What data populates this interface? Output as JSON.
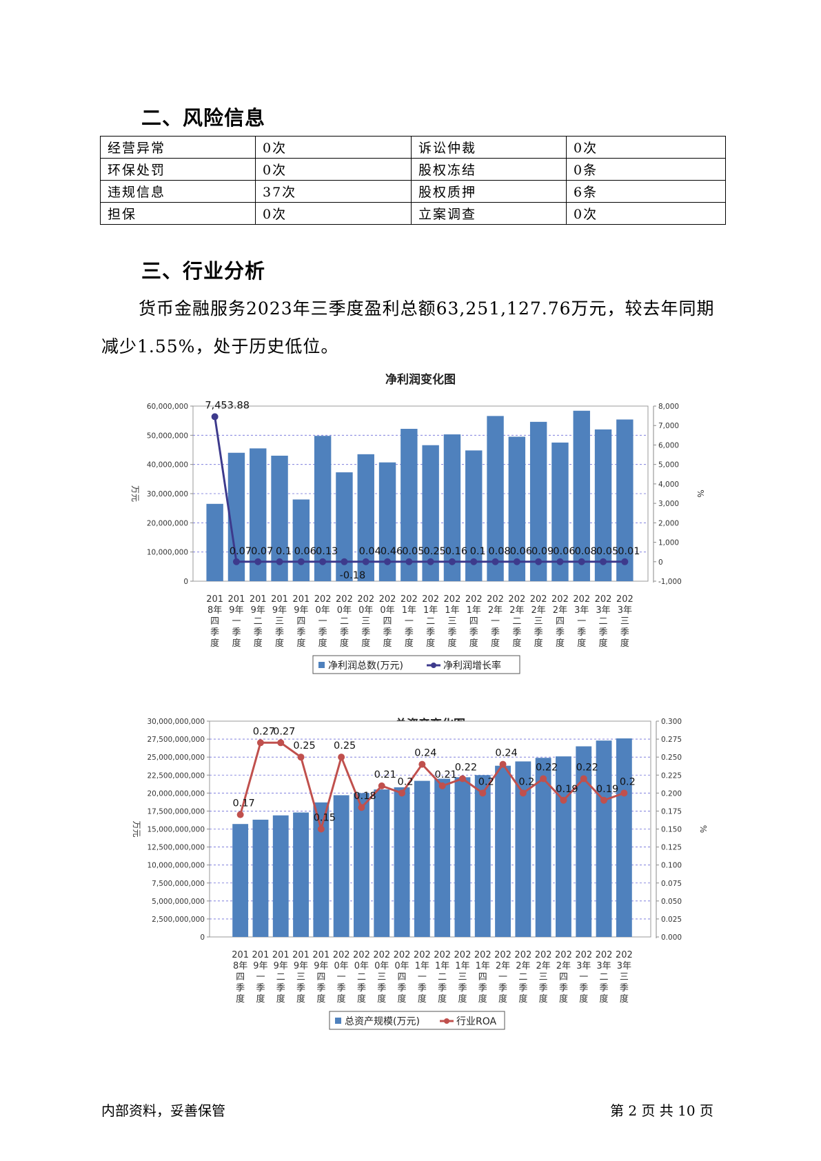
{
  "sections": {
    "risk_title": "二、风险信息",
    "industry_title": "三、行业分析"
  },
  "risk_table": {
    "rows": [
      [
        "经营异常",
        "0次",
        "诉讼仲裁",
        "0次"
      ],
      [
        "环保处罚",
        "0次",
        "股权冻结",
        "0条"
      ],
      [
        "违规信息",
        "37次",
        "股权质押",
        "6条"
      ],
      [
        "担保",
        "0次",
        "立案调查",
        "0次"
      ]
    ]
  },
  "paragraph": "货币金融服务2023年三季度盈利总额63,251,127.76万元，较去年同期减少1.55%，处于历史低位。",
  "footer": {
    "left": "内部资料，妥善保管",
    "right": "第 2 页   共 10 页"
  },
  "chart_data": [
    {
      "type": "bar",
      "title": "净利润变化图",
      "ylabel": "万元",
      "y2label": "%",
      "ylim": [
        0,
        60000000
      ],
      "y2lim": [
        -1000,
        8000
      ],
      "y_ticks": [
        "0",
        "10,000,000",
        "20,000,000",
        "30,000,000",
        "40,000,000",
        "50,000,000",
        "60,000,000"
      ],
      "y2_ticks": [
        "-1,000",
        "0",
        "1,000",
        "2,000",
        "3,000",
        "4,000",
        "5,000",
        "6,000",
        "7,000",
        "8,000"
      ],
      "categories": [
        "2018年四季度",
        "2019年一季度",
        "2019年二季度",
        "2019年三季度",
        "2019年四季度",
        "2020年一季度",
        "2020年二季度",
        "2020年三季度",
        "2020年四季度",
        "2021年一季度",
        "2021年二季度",
        "2021年三季度",
        "2021年四季度",
        "2022年一季度",
        "2022年二季度",
        "2022年三季度",
        "2022年四季度",
        "2023年一季度",
        "2023年二季度",
        "2023年三季度"
      ],
      "series": [
        {
          "name": "净利润总数(万元)",
          "kind": "bar",
          "color": "#4f81bd",
          "values": [
            26500000,
            44000000,
            45500000,
            43000000,
            28000000,
            49800000,
            37300000,
            43500000,
            40700000,
            52200000,
            46600000,
            50300000,
            44800000,
            56600000,
            49500000,
            54600000,
            47500000,
            58400000,
            52000000,
            55400000
          ]
        },
        {
          "name": "净利润增长率",
          "kind": "line",
          "color": "#3d3a8c",
          "values": [
            7453.88,
            0.07,
            0.07,
            0.1,
            0.06,
            0.13,
            -0.18,
            0.04,
            0.46,
            0.05,
            0.25,
            0.16,
            0.1,
            0.08,
            0.06,
            0.09,
            0.06,
            0.08,
            0.05,
            0.01
          ],
          "labels": [
            "7,453.88",
            "0.07",
            "0.07",
            "0.1",
            "0.06",
            "0.13",
            "-0.18",
            "0.04",
            "0.46",
            "0.05",
            "0.25",
            "0.16",
            "0.1",
            "0.08",
            "0.06",
            "0.09",
            "0.06",
            "0.08",
            "0.05",
            "0.01"
          ]
        }
      ],
      "grid": true,
      "legend": "bottom"
    },
    {
      "type": "bar",
      "title": "总资产变化图",
      "ylabel": "万元",
      "y2label": "%",
      "ylim": [
        0,
        30000000000
      ],
      "y2lim": [
        0,
        0.3
      ],
      "y_ticks": [
        "0",
        "2,500,000,000",
        "5,000,000,000",
        "7,500,000,000",
        "10,000,000,000",
        "12,500,000,000",
        "15,000,000,000",
        "17,500,000,000",
        "20,000,000,000",
        "22,500,000,000",
        "25,000,000,000",
        "27,500,000,000",
        "30,000,000,000"
      ],
      "y2_ticks": [
        "0.000",
        "0.025",
        "0.050",
        "0.075",
        "0.100",
        "0.125",
        "0.150",
        "0.175",
        "0.200",
        "0.225",
        "0.250",
        "0.275",
        "0.300"
      ],
      "categories": [
        "2018年四季度",
        "2019年一季度",
        "2019年二季度",
        "2019年三季度",
        "2019年四季度",
        "2020年一季度",
        "2020年二季度",
        "2020年三季度",
        "2020年四季度",
        "2021年一季度",
        "2021年二季度",
        "2021年三季度",
        "2021年四季度",
        "2022年一季度",
        "2022年二季度",
        "2022年三季度",
        "2022年四季度",
        "2023年一季度",
        "2023年二季度",
        "2023年三季度"
      ],
      "series": [
        {
          "name": "总资产规模(万元)",
          "kind": "bar",
          "color": "#4f81bd",
          "values": [
            15700000000,
            16300000000,
            16900000000,
            17300000000,
            18700000000,
            19700000000,
            20000000000,
            20500000000,
            20800000000,
            21700000000,
            22000000000,
            22200000000,
            22500000000,
            23800000000,
            24400000000,
            24900000000,
            25100000000,
            26500000000,
            27300000000,
            27600000000
          ]
        },
        {
          "name": "行业ROA",
          "kind": "line",
          "color": "#c0504d",
          "values": [
            0.17,
            0.27,
            0.27,
            0.25,
            0.15,
            0.25,
            0.18,
            0.21,
            0.2,
            0.24,
            0.21,
            0.22,
            0.2,
            0.24,
            0.2,
            0.22,
            0.19,
            0.22,
            0.19,
            0.2
          ],
          "labels": [
            "0.17",
            "0.27",
            "0.27",
            "0.25",
            "0.15",
            "0.25",
            "0.18",
            "0.21",
            "0.2",
            "0.24",
            "0.21",
            "0.22",
            "0.2",
            "0.24",
            "0.2",
            "0.22",
            "0.19",
            "0.22",
            "0.19",
            "0.2"
          ]
        }
      ],
      "grid": true,
      "legend": "bottom"
    }
  ]
}
